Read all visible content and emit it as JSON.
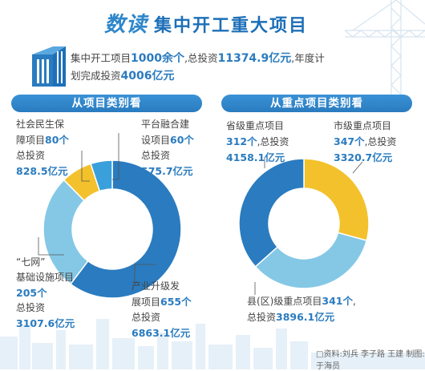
{
  "title": {
    "prefix": "数读",
    "main": "集中开工重大项目"
  },
  "summary": {
    "part1": "集中开工项目",
    "count": "1000余个",
    "part2": ",总投资",
    "total": "11374.9亿元",
    "part3": ",年度计",
    "part4": "划完成投资",
    "annual": "4006亿元"
  },
  "sections": {
    "left": "从项目类别看",
    "right": "从重点项目类别看"
  },
  "labels": {
    "social": {
      "l1": "社会民生保",
      "l2a": "障项目",
      "l2b": "80个",
      "l3": "总投资",
      "l4": "828.5亿元"
    },
    "platform": {
      "l1": "平台融合建",
      "l2a": "设项目",
      "l2b": "60个",
      "l3": "总投资",
      "l4": "575.7亿元"
    },
    "qiwang": {
      "l1": "“七网”",
      "l2": "基础设施项目",
      "l3": "205个",
      "l4": "总投资",
      "l5": "3107.6亿元"
    },
    "industry": {
      "l1": "产业升级发",
      "l2a": "展项目",
      "l2b": "655个",
      "l3": "总投资",
      "l4": "6863.1亿元"
    },
    "province": {
      "l1": "省级重点项目",
      "l2a": "312个",
      "l2b": ",总投资",
      "l3": "4158.1亿元"
    },
    "city": {
      "l1": "市级重点项目",
      "l2a": "347个",
      "l2b": ",总投资",
      "l3": "3320.7亿元"
    },
    "county": {
      "l1a": "县(区)级重点项目",
      "l1b": "341个",
      "l1c": ",",
      "l2a": "总投资",
      "l2b": "3896.1亿元"
    }
  },
  "credit": "资料:刘兵  李子路  王建  制图:于海员",
  "chart_data": [
    {
      "type": "pie",
      "title": "从项目类别看",
      "categories": [
        "产业升级发展项目",
        "“七网”基础设施项目",
        "社会民生保障项目",
        "平台融合建设项目"
      ],
      "values": [
        6863.1,
        3107.6,
        828.5,
        575.7
      ],
      "unit": "亿元",
      "colors": [
        "#2a7bbf",
        "#84c8e6",
        "#f3c12b",
        "#3aa0dc"
      ]
    },
    {
      "type": "pie",
      "title": "从重点项目类别看",
      "categories": [
        "市级重点项目",
        "县(区)级重点项目",
        "省级重点项目"
      ],
      "values": [
        3320.7,
        3896.1,
        4158.1
      ],
      "unit": "亿元",
      "colors": [
        "#f3c12b",
        "#84c8e6",
        "#2a7bbf"
      ]
    }
  ]
}
